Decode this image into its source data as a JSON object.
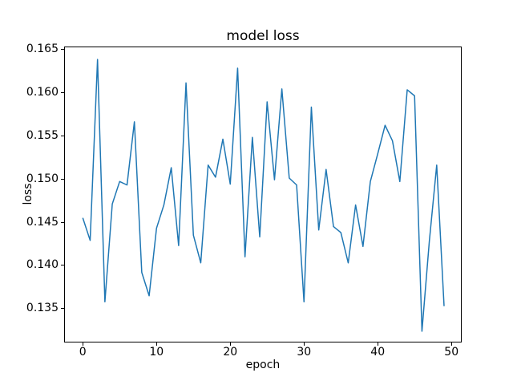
{
  "chart_data": {
    "type": "line",
    "title": "model loss",
    "xlabel": "epoch",
    "ylabel": "loss",
    "grid": false,
    "legend": null,
    "background": "#ffffff",
    "line_color": "#1f77b4",
    "line_width": 1.5,
    "xlim": [
      -2.53,
      51.39
    ],
    "ylim": [
      0.1311,
      0.1653
    ],
    "xticks": [
      0,
      10,
      20,
      30,
      40,
      50
    ],
    "xtick_labels": [
      "0",
      "10",
      "20",
      "30",
      "40",
      "50"
    ],
    "yticks": [
      0.135,
      0.14,
      0.145,
      0.15,
      0.155,
      0.16,
      0.165
    ],
    "ytick_labels": [
      "0.135",
      "0.140",
      "0.145",
      "0.150",
      "0.155",
      "0.160",
      "0.165"
    ],
    "x": [
      0,
      1,
      2,
      3,
      4,
      5,
      6,
      7,
      8,
      9,
      10,
      11,
      12,
      13,
      14,
      15,
      16,
      17,
      18,
      19,
      20,
      21,
      22,
      23,
      24,
      25,
      26,
      27,
      28,
      29,
      30,
      31,
      32,
      33,
      34,
      35,
      36,
      37,
      38,
      39,
      40,
      41,
      42,
      43,
      44,
      45,
      46,
      47,
      48,
      49
    ],
    "series": [
      {
        "name": "loss",
        "values": [
          0.1455,
          0.1429,
          0.1638,
          0.1358,
          0.1471,
          0.1497,
          0.1493,
          0.1566,
          0.1392,
          0.1365,
          0.1443,
          0.147,
          0.1513,
          0.1423,
          0.1611,
          0.1435,
          0.1403,
          0.1516,
          0.1502,
          0.1546,
          0.1494,
          0.1628,
          0.141,
          0.1548,
          0.1433,
          0.1589,
          0.1499,
          0.1604,
          0.1501,
          0.1493,
          0.1358,
          0.1583,
          0.1441,
          0.1511,
          0.1445,
          0.1438,
          0.1403,
          0.147,
          0.1422,
          0.1497,
          0.1529,
          0.1562,
          0.1544,
          0.1497,
          0.1603,
          0.1596,
          0.1324,
          0.1428,
          0.1516,
          0.1353
        ]
      }
    ]
  }
}
